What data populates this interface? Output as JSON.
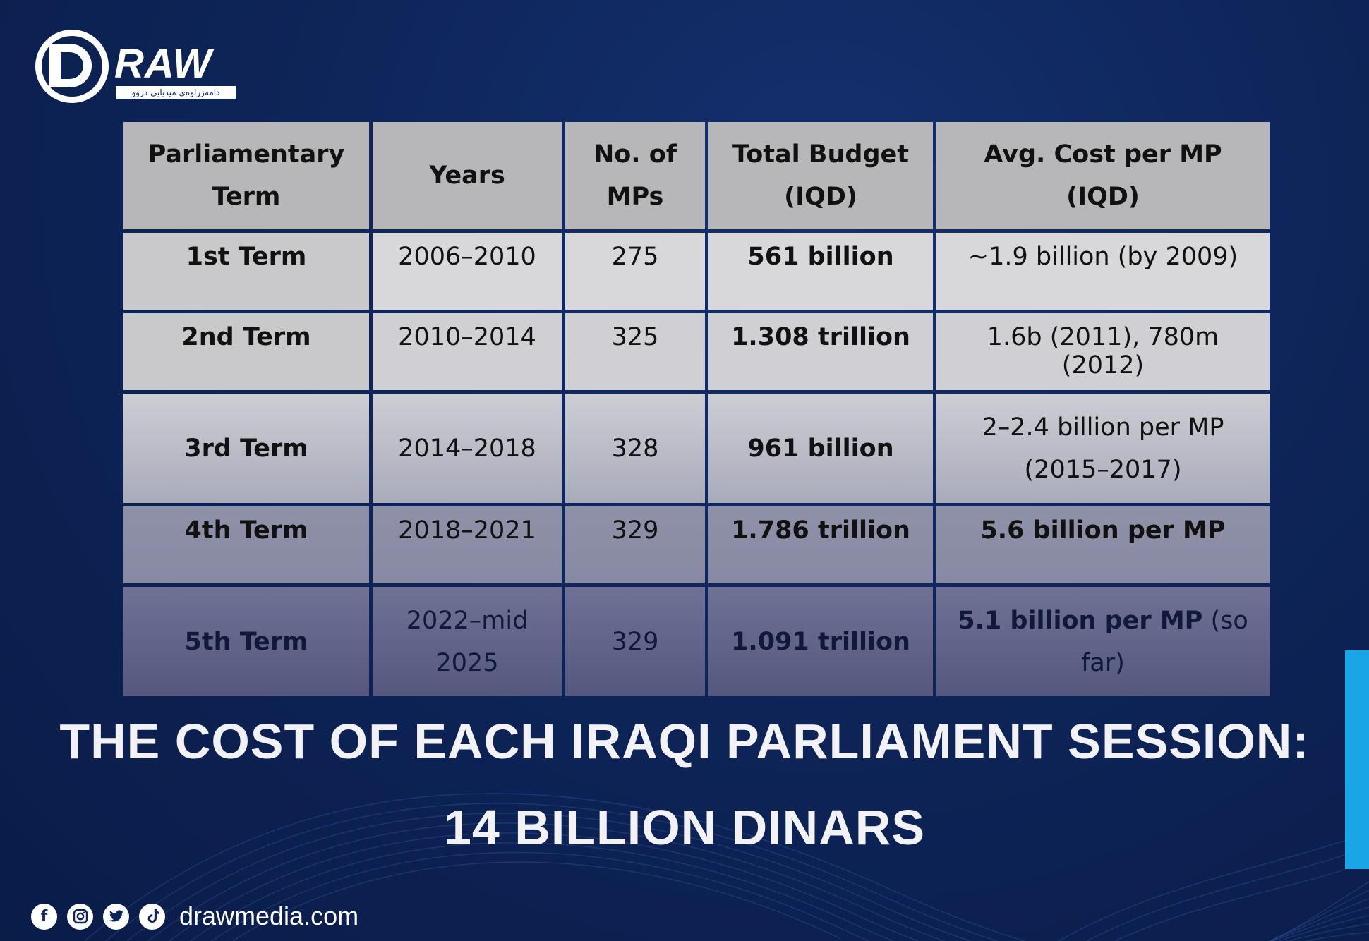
{
  "brand": {
    "logo_word": "RAW",
    "logo_sub": "دامەزراوەی میدیایی دروو",
    "website": "drawmedia.com",
    "colors": {
      "background": "#0e2559",
      "accent": "#1aa5e6",
      "header_cell": "#b7b7b9"
    }
  },
  "table": {
    "headers": [
      "Parliamentary Term",
      "Years",
      "No. of MPs",
      "Total Budget (IQD)",
      "Avg. Cost per MP (IQD)"
    ],
    "rows": [
      {
        "term": "1st Term",
        "years": "2006–2010",
        "mps": "275",
        "budget": "561 billion",
        "avg": "~1.9 billion (by 2009)",
        "avg_note": ""
      },
      {
        "term": "2nd Term",
        "years": "2010–2014",
        "mps": "325",
        "budget": "1.308 trillion",
        "avg": "1.6b (2011), 780m (2012)",
        "avg_note": ""
      },
      {
        "term": "3rd Term",
        "years": "2014–2018",
        "mps": "328",
        "budget": "961 billion",
        "avg": "2–2.4 billion per MP (2015–2017)",
        "avg_note": ""
      },
      {
        "term": "4th Term",
        "years": "2018–2021",
        "mps": "329",
        "budget": "1.786 trillion",
        "avg": "5.6 billion per MP",
        "avg_note": ""
      },
      {
        "term": "5th Term",
        "years": "2022–mid 2025",
        "mps": "329",
        "budget": "1.091 trillion",
        "avg": "5.1 billion per MP",
        "avg_note": "(so far)"
      }
    ]
  },
  "headline": {
    "line1": "THE COST OF EACH IRAQI PARLIAMENT SESSION:",
    "line2": "14 BILLION DINARS"
  },
  "social_icons": [
    "facebook-icon",
    "instagram-icon",
    "twitter-icon",
    "tiktok-icon"
  ]
}
